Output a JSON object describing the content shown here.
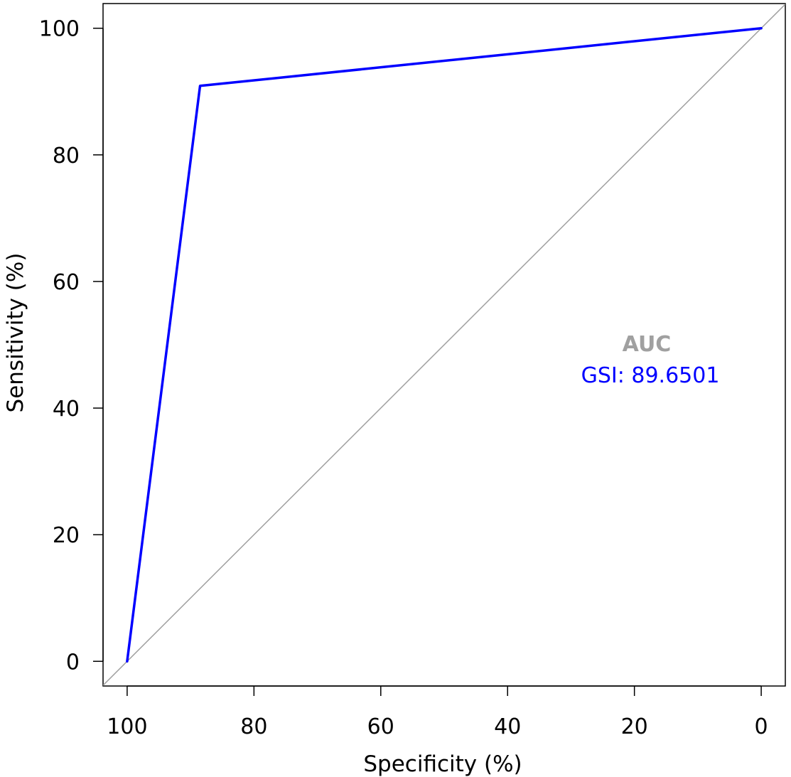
{
  "chart_data": {
    "type": "line",
    "xlabel": "Specificity (%)",
    "ylabel": "Sensitivity (%)",
    "xlim": [
      103.8,
      -3.8
    ],
    "ylim": [
      -3.9,
      103.9
    ],
    "x_reversed": true,
    "xticks": [
      "100",
      "80",
      "60",
      "40",
      "20",
      "0"
    ],
    "yticks": [
      "0",
      "20",
      "40",
      "60",
      "80",
      "100"
    ],
    "xtick_values": [
      100,
      80,
      60,
      40,
      20,
      0
    ],
    "ytick_values": [
      0,
      20,
      40,
      60,
      80,
      100
    ],
    "grid": false,
    "series": [
      {
        "color": "#0000ff",
        "x": [
          100,
          88.5,
          0
        ],
        "y": [
          0,
          90.9,
          100
        ]
      }
    ],
    "reference_line": {
      "x": [
        100,
        0
      ],
      "y": [
        0,
        100
      ],
      "color": "#a0a0a0"
    },
    "legend": {
      "title": "AUC",
      "title_color": "#a0a0a0",
      "placement": "center-right",
      "entries": [
        {
          "label": "GSI: 89.6501",
          "color": "#0000ff"
        }
      ]
    }
  }
}
